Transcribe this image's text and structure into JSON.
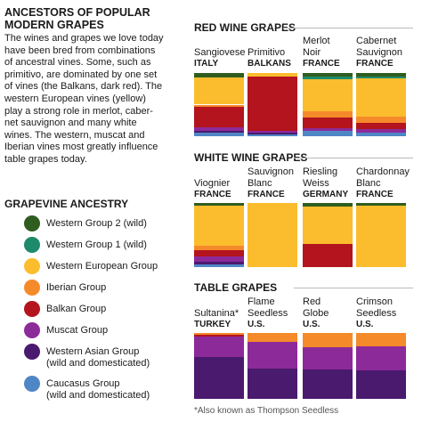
{
  "title": [
    "ANCESTORS OF POPULAR",
    "MODERN GRAPES"
  ],
  "intro": [
    "The wines and grapes we love today",
    "have been bred from combinations",
    "of ancestral vines. Some, such as",
    "primitivo, are dominated by one set",
    "of vines (the Balkans, dark red). The",
    "western European vines (yellow)",
    "play a strong role in merlot, caber-",
    "net sauvignon and many white",
    "wines. The western, muscat and",
    "Iberian vines most greatly influence",
    "table grapes today."
  ],
  "legend": {
    "title": "GRAPEVINE ANCESTRY",
    "items": [
      {
        "name": "Western Group 2 (wild)",
        "color": "#2f5d1f"
      },
      {
        "name": "Western Group 1 (wild)",
        "color": "#1e8a6c"
      },
      {
        "name": "Western European Group",
        "color": "#fbbd2e"
      },
      {
        "name": "Iberian Group",
        "color": "#f58a2b"
      },
      {
        "name": "Balkan Group",
        "color": "#b3141d"
      },
      {
        "name": "Muscat Group",
        "color": "#8d2a99"
      },
      {
        "name": "Western Asian Group",
        "note": "(wild and domesticated)",
        "color": "#4a1a6e"
      },
      {
        "name": "Caucasus Group",
        "note": "(wild and domesticated)",
        "color": "#4f86c6"
      }
    ]
  },
  "footnote": "*Also known as Thompson Seedless",
  "chart_data": [
    {
      "type": "bar",
      "stacked": true,
      "title": "RED WINE GRAPES",
      "categories": [
        "Sangiovese",
        "Primitivo",
        "Merlot Noir",
        "Cabernet Sauvignon"
      ],
      "countries": [
        "ITALY",
        "BALKANS",
        "FRANCE",
        "FRANCE"
      ],
      "series": [
        {
          "values": [
            7,
            0,
            6,
            5
          ]
        },
        {
          "values": [
            0,
            0,
            4,
            4
          ]
        },
        {
          "values": [
            43,
            6,
            50,
            60
          ]
        },
        {
          "values": [
            3,
            0,
            10,
            10
          ]
        },
        {
          "values": [
            33,
            86,
            18,
            10
          ]
        },
        {
          "values": [
            6,
            3,
            4,
            5
          ]
        },
        {
          "values": [
            3,
            2,
            0,
            0
          ]
        },
        {
          "values": [
            5,
            3,
            8,
            6
          ]
        }
      ]
    },
    {
      "type": "bar",
      "stacked": true,
      "title": "WHITE WINE GRAPES",
      "categories": [
        "Viognier",
        "Sauvignon Blanc",
        "Riesling Weiss",
        "Chardonnay Blanc"
      ],
      "countries": [
        "FRANCE",
        "FRANCE",
        "GERMANY",
        "FRANCE"
      ],
      "series": [
        {
          "values": [
            4,
            0,
            6,
            4
          ]
        },
        {
          "values": [
            0,
            0,
            0,
            0
          ]
        },
        {
          "values": [
            62,
            100,
            58,
            96
          ]
        },
        {
          "values": [
            8,
            0,
            0,
            0
          ]
        },
        {
          "values": [
            10,
            0,
            36,
            0
          ]
        },
        {
          "values": [
            8,
            0,
            0,
            0
          ]
        },
        {
          "values": [
            4,
            0,
            0,
            0
          ]
        },
        {
          "values": [
            4,
            0,
            0,
            0
          ]
        }
      ]
    },
    {
      "type": "bar",
      "stacked": true,
      "title": "TABLE GRAPES",
      "categories": [
        "Sultanina*",
        "Flame Seedless",
        "Red Globe",
        "Crimson Seedless"
      ],
      "countries": [
        "TURKEY",
        "U.S.",
        "U.S.",
        "U.S."
      ],
      "series": [
        {
          "values": [
            0,
            0,
            0,
            0
          ]
        },
        {
          "values": [
            0,
            0,
            0,
            0
          ]
        },
        {
          "values": [
            0,
            0,
            0,
            0
          ]
        },
        {
          "values": [
            3,
            14,
            22,
            20
          ]
        },
        {
          "values": [
            3,
            0,
            0,
            0
          ]
        },
        {
          "values": [
            31,
            40,
            33,
            37
          ]
        },
        {
          "values": [
            63,
            46,
            45,
            43
          ]
        },
        {
          "values": [
            0,
            0,
            0,
            0
          ]
        }
      ]
    }
  ]
}
